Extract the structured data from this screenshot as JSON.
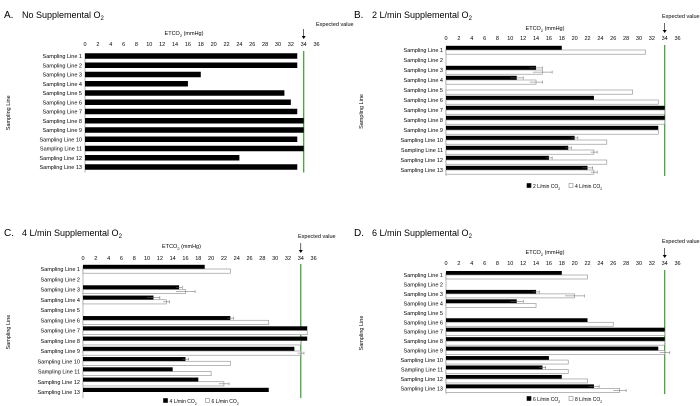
{
  "figure": {
    "ylabel": "Sampling Line",
    "expected_label": "Expected value",
    "expected_value": 34,
    "axis_ticks": [
      0,
      2,
      4,
      6,
      8,
      10,
      12,
      14,
      16,
      18,
      20,
      22,
      24,
      26,
      28,
      30,
      32,
      34,
      36
    ],
    "xlim": [
      0,
      37
    ],
    "colors": {
      "series1": "#000000",
      "series2": "#ffffff",
      "series2_stroke": "#8a8a8a",
      "expected_line": "#3a9a32"
    }
  },
  "chart_data": [
    {
      "type": "bar",
      "panel_letter": "A.",
      "title": "No Supplemental O",
      "title_sub": "2",
      "xlabel": "ETCO",
      "xlabel_sub": "2",
      "xlabel_unit": " (mmHg)",
      "ylabel": "Sampling Line",
      "orientation": "horizontal",
      "categories": [
        "Sampling Line 1",
        "Sampling Line 2",
        "Sampling Line 3",
        "Sampling Line 4",
        "Sampling Line 5",
        "Sampling Line 6",
        "Sampling Line 7",
        "Sampling Line 8",
        "Sampling Line 9",
        "Sampling Line 10",
        "Sampling Line 11",
        "Sampling Line 12",
        "Sampling Line 13"
      ],
      "series": [
        {
          "values": [
            33,
            33,
            18,
            16,
            31,
            32,
            33,
            34,
            34,
            33,
            34,
            24,
            33
          ]
        }
      ],
      "xlim": [
        0,
        37
      ],
      "expected_value": 34,
      "legend": []
    },
    {
      "type": "bar",
      "panel_letter": "B.",
      "title": "2 L/min Supplemental O",
      "title_sub": "2",
      "xlabel": "ETCO",
      "xlabel_sub": "2",
      "xlabel_unit": " (mmHg)",
      "ylabel": "Sampling Line",
      "orientation": "horizontal",
      "categories": [
        "Sampling Line 1",
        "Sampling Line 2",
        "Sampling Line 3",
        "Sampling Line 4",
        "Sampling Line 5",
        "Sampling Line 6",
        "Sampling Line 7",
        "Sampling Line 8",
        "Sampling Line 9",
        "Sampling Line 10",
        "Sampling Line 11",
        "Sampling Line 12",
        "Sampling Line 13"
      ],
      "series": [
        {
          "name": "2 L/min CO2",
          "values": [
            18,
            0,
            14,
            11,
            0,
            23,
            34,
            34,
            33,
            20,
            19,
            16,
            22
          ],
          "errors": [
            0,
            0,
            1,
            1,
            0,
            0,
            0,
            0,
            0,
            0.5,
            0.5,
            0.5,
            0.8
          ]
        },
        {
          "name": "4 L/min CO2",
          "values": [
            31,
            0,
            15,
            14,
            29,
            33,
            34,
            34,
            33,
            25,
            23,
            25,
            23
          ],
          "errors": [
            0,
            0,
            1.5,
            1,
            0,
            0,
            0,
            0,
            0,
            0,
            0.5,
            0,
            0.5
          ]
        }
      ],
      "xlim": [
        0,
        37
      ],
      "expected_value": 34,
      "legend": [
        "2 L/min CO",
        "4 L/min CO"
      ]
    },
    {
      "type": "bar",
      "panel_letter": "C.",
      "title": "4 L/min Supplemental O",
      "title_sub": "2",
      "xlabel": "ETCO",
      "xlabel_sub": "2",
      "xlabel_unit": " (mmHg)",
      "ylabel": "Sampling Line",
      "orientation": "horizontal",
      "categories": [
        "Sampling Line 1",
        "Sampling Line 2",
        "Sampling Line 3",
        "Sampling Line 4",
        "Sampling Line 5",
        "Sampling Line 6",
        "Sampling Line 7",
        "Sampling Line 8",
        "Sampling Line 9",
        "Sampling Line 10",
        "Sampling Line 11",
        "Sampling Line 12",
        "Sampling Line 13"
      ],
      "series": [
        {
          "name": "4 L/min CO2",
          "values": [
            19,
            0,
            15,
            11,
            0,
            23,
            35,
            35,
            33,
            16,
            14,
            18,
            29
          ],
          "errors": [
            0,
            0,
            0.5,
            1,
            0,
            0.5,
            0,
            0,
            0,
            0.5,
            0,
            0,
            0
          ]
        },
        {
          "name": "6 L/min CO2",
          "values": [
            23,
            0,
            16,
            13,
            0,
            29,
            35,
            34,
            34,
            23,
            20,
            22,
            0
          ],
          "errors": [
            0,
            0,
            1.5,
            0.5,
            0,
            0,
            0,
            0,
            0.5,
            0,
            0,
            0.8,
            0
          ]
        }
      ],
      "xlim": [
        0,
        37
      ],
      "expected_value": 34,
      "legend": [
        "4 L/min CO",
        "6 L/min CO"
      ]
    },
    {
      "type": "bar",
      "panel_letter": "D.",
      "title": "6 L/min Supplemental O",
      "title_sub": "2",
      "xlabel": "ETCO",
      "xlabel_sub": "2",
      "xlabel_unit": " (mmHg)",
      "ylabel": "Sampling Line",
      "orientation": "horizontal",
      "categories": [
        "Sampling Line 1",
        "Sampling Line 2",
        "Sampling Line 3",
        "Sampling Line 4",
        "Sampling Line 5",
        "Sampling Line 6",
        "Sampling Line 7",
        "Sampling Line 8",
        "Sampling Line 9",
        "Sampling Line 10",
        "Sampling Line 11",
        "Sampling Line 12",
        "Sampling Line 13"
      ],
      "series": [
        {
          "name": "6 L/min CO2",
          "values": [
            18,
            0,
            14,
            11,
            0,
            22,
            34,
            34,
            33,
            16,
            15,
            18,
            23
          ],
          "errors": [
            0,
            0,
            0.5,
            1,
            0,
            0,
            0,
            0,
            0,
            0,
            0.5,
            0,
            0.8
          ]
        },
        {
          "name": "8 L/min CO2",
          "values": [
            22,
            0,
            20,
            14,
            0,
            26,
            34,
            34,
            34,
            19,
            19,
            22,
            27
          ],
          "errors": [
            0,
            0,
            1.5,
            0,
            0,
            0,
            0,
            0,
            0.8,
            0,
            0,
            0,
            1
          ]
        }
      ],
      "xlim": [
        0,
        37
      ],
      "expected_value": 34,
      "legend": [
        "6 L/min CO",
        "8 L/min CO"
      ]
    }
  ]
}
